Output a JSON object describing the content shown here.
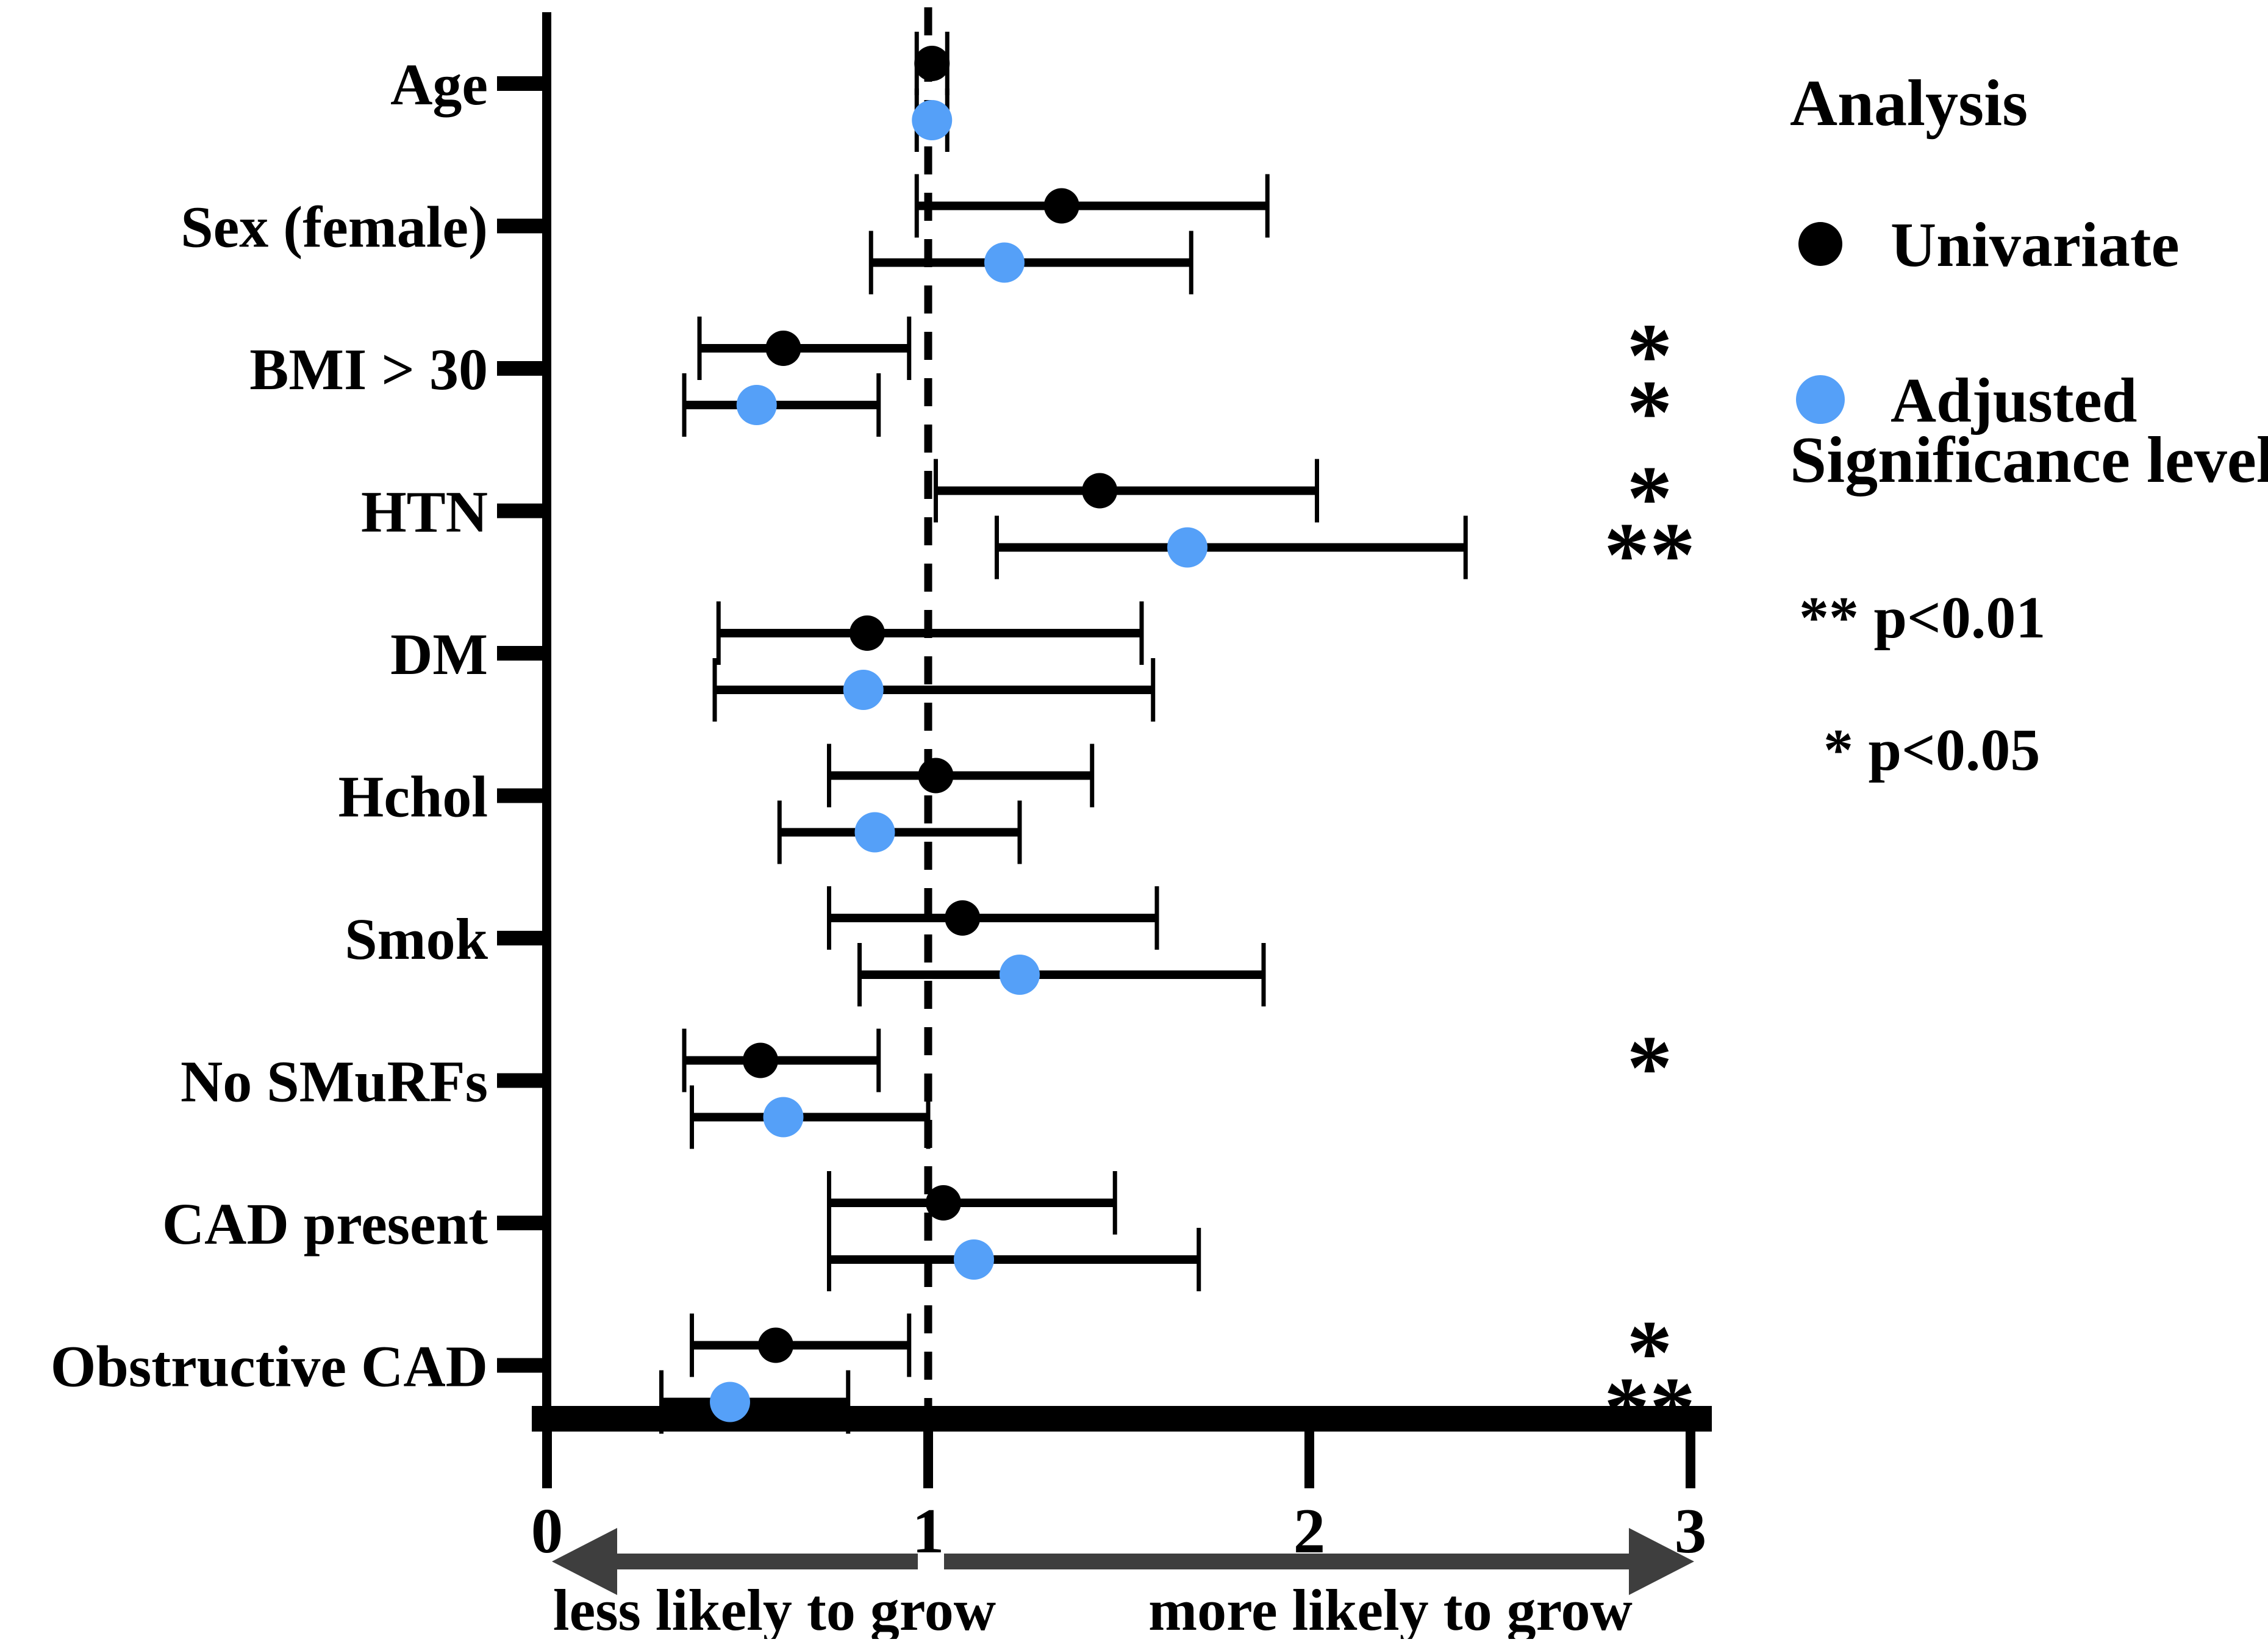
{
  "chart_data": {
    "type": "scatter",
    "variant": "forest-plot",
    "title": "",
    "x_axis": {
      "label": "",
      "ticks": [
        0,
        1,
        2,
        3
      ],
      "range": [
        0,
        3
      ],
      "reference_line": 1.0,
      "grid": false
    },
    "categories": [
      "Age",
      "Sex (female)",
      "BMI > 30",
      "HTN",
      "DM",
      "Hchol",
      "Smok",
      "No SMuRFs",
      "CAD present",
      "Obstructive CAD"
    ],
    "series": [
      {
        "name": "Univariate",
        "color": "#000000",
        "points": [
          {
            "category": "Age",
            "value": 1.01,
            "ci_low": 0.97,
            "ci_high": 1.05,
            "significance": ""
          },
          {
            "category": "Sex (female)",
            "value": 1.35,
            "ci_low": 0.97,
            "ci_high": 1.89,
            "significance": ""
          },
          {
            "category": "BMI > 30",
            "value": 0.62,
            "ci_low": 0.4,
            "ci_high": 0.95,
            "significance": "*"
          },
          {
            "category": "HTN",
            "value": 1.45,
            "ci_low": 1.02,
            "ci_high": 2.02,
            "significance": "*"
          },
          {
            "category": "DM",
            "value": 0.84,
            "ci_low": 0.45,
            "ci_high": 1.56,
            "significance": ""
          },
          {
            "category": "Hchol",
            "value": 1.02,
            "ci_low": 0.74,
            "ci_high": 1.43,
            "significance": ""
          },
          {
            "category": "Smok",
            "value": 1.09,
            "ci_low": 0.74,
            "ci_high": 1.6,
            "significance": ""
          },
          {
            "category": "No SMuRFs",
            "value": 0.56,
            "ci_low": 0.36,
            "ci_high": 0.87,
            "significance": "*"
          },
          {
            "category": "CAD present",
            "value": 1.04,
            "ci_low": 0.74,
            "ci_high": 1.49,
            "significance": ""
          },
          {
            "category": "Obstructive CAD",
            "value": 0.6,
            "ci_low": 0.38,
            "ci_high": 0.95,
            "significance": "*"
          }
        ]
      },
      {
        "name": "Adjusted",
        "color": "#55A0F8",
        "points": [
          {
            "category": "Age",
            "value": 1.01,
            "ci_low": 0.97,
            "ci_high": 1.05,
            "significance": ""
          },
          {
            "category": "Sex (female)",
            "value": 1.2,
            "ci_low": 0.85,
            "ci_high": 1.69,
            "significance": ""
          },
          {
            "category": "BMI > 30",
            "value": 0.55,
            "ci_low": 0.36,
            "ci_high": 0.87,
            "significance": "*"
          },
          {
            "category": "HTN",
            "value": 1.68,
            "ci_low": 1.18,
            "ci_high": 2.41,
            "significance": "**"
          },
          {
            "category": "DM",
            "value": 0.83,
            "ci_low": 0.44,
            "ci_high": 1.59,
            "significance": ""
          },
          {
            "category": "Hchol",
            "value": 0.86,
            "ci_low": 0.61,
            "ci_high": 1.24,
            "significance": ""
          },
          {
            "category": "Smok",
            "value": 1.24,
            "ci_low": 0.82,
            "ci_high": 1.88,
            "significance": ""
          },
          {
            "category": "No SMuRFs",
            "value": 0.62,
            "ci_low": 0.38,
            "ci_high": 1.0,
            "significance": ""
          },
          {
            "category": "CAD present",
            "value": 1.12,
            "ci_low": 0.74,
            "ci_high": 1.71,
            "significance": ""
          },
          {
            "category": "Obstructive CAD",
            "value": 0.48,
            "ci_low": 0.3,
            "ci_high": 0.79,
            "significance": "**"
          }
        ]
      }
    ],
    "legend": {
      "title": "Analysis",
      "entries": [
        {
          "label": "Univariate",
          "color": "#000000"
        },
        {
          "label": "Adjusted",
          "color": "#55A0F8"
        }
      ],
      "position": "top-right"
    },
    "significance_legend": {
      "title": "Significance level",
      "entries": [
        "** p<0.01",
        "* p<0.05"
      ]
    },
    "direction_labels": {
      "left": "less likely to grow",
      "right": "more likely to grow"
    },
    "colors": {
      "univariate": "#000000",
      "adjusted": "#55A0F8",
      "arrow": "#3E3E3E",
      "error_bar": "#000000",
      "reference_line": "#000000"
    }
  }
}
